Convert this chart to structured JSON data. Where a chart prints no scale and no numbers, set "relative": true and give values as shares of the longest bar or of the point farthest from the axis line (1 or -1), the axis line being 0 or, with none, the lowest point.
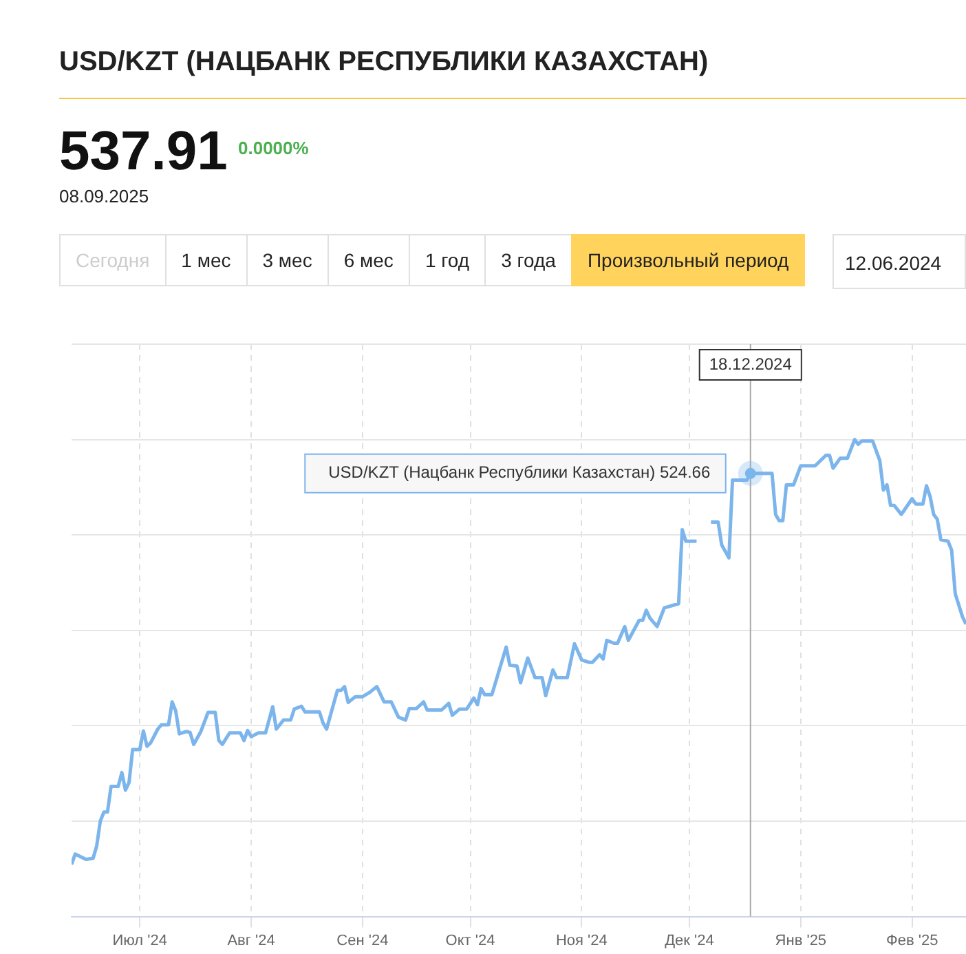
{
  "chart_data": {
    "type": "line",
    "title": "USD/KZT (НАЦБАНК РЕСПУБЛИКИ КАЗАХСТАН)",
    "relative": true,
    "grid": true,
    "legend": false,
    "marker": "none",
    "line_style": "solid",
    "xlim": [
      "2024-06-12",
      "2025-02-16"
    ],
    "xticks": [
      {
        "value": "2024-07-01",
        "label": "Июл '24"
      },
      {
        "value": "2024-08-01",
        "label": "Авг '24"
      },
      {
        "value": "2024-09-01",
        "label": "Сен '24"
      },
      {
        "value": "2024-10-01",
        "label": "Окт '24"
      },
      {
        "value": "2024-11-01",
        "label": "Ноя '24"
      },
      {
        "value": "2024-12-01",
        "label": "Дек '24"
      },
      {
        "value": "2025-01-01",
        "label": "Янв '25"
      },
      {
        "value": "2025-02-01",
        "label": "Фев '25"
      }
    ],
    "x": [
      "2024-06-12",
      "2024-06-13",
      "2024-06-16",
      "2024-06-18",
      "2024-06-19",
      "2024-06-20",
      "2024-06-21",
      "2024-06-22",
      "2024-06-23",
      "2024-06-25",
      "2024-06-26",
      "2024-06-27",
      "2024-06-28",
      "2024-06-29",
      "2024-07-01",
      "2024-07-02",
      "2024-07-03",
      "2024-07-04",
      "2024-07-06",
      "2024-07-07",
      "2024-07-09",
      "2024-07-10",
      "2024-07-11",
      "2024-07-12",
      "2024-07-14",
      "2024-07-15",
      "2024-07-16",
      "2024-07-18",
      "2024-07-20",
      "2024-07-22",
      "2024-07-23",
      "2024-07-24",
      "2024-07-26",
      "2024-07-29",
      "2024-07-30",
      "2024-07-31",
      "2024-08-01",
      "2024-08-03",
      "2024-08-05",
      "2024-08-07",
      "2024-08-08",
      "2024-08-10",
      "2024-08-12",
      "2024-08-13",
      "2024-08-15",
      "2024-08-16",
      "2024-08-20",
      "2024-08-21",
      "2024-08-22",
      "2024-08-25",
      "2024-08-26",
      "2024-08-27",
      "2024-08-28",
      "2024-08-30",
      "2024-09-01",
      "2024-09-03",
      "2024-09-05",
      "2024-09-07",
      "2024-09-09",
      "2024-09-11",
      "2024-09-13",
      "2024-09-14",
      "2024-09-16",
      "2024-09-18",
      "2024-09-19",
      "2024-09-23",
      "2024-09-25",
      "2024-09-26",
      "2024-09-28",
      "2024-09-30",
      "2024-10-02",
      "2024-10-03",
      "2024-10-04",
      "2024-10-05",
      "2024-10-07",
      "2024-10-11",
      "2024-10-12",
      "2024-10-14",
      "2024-10-15",
      "2024-10-17",
      "2024-10-19",
      "2024-10-21",
      "2024-10-22",
      "2024-10-24",
      "2024-10-25",
      "2024-10-28",
      "2024-10-30",
      "2024-11-01",
      "2024-11-03",
      "2024-11-04",
      "2024-11-06",
      "2024-11-07",
      "2024-11-08",
      "2024-11-10",
      "2024-11-11",
      "2024-11-13",
      "2024-11-14",
      "2024-11-17",
      "2024-11-18",
      "2024-11-19",
      "2024-11-20",
      "2024-11-22",
      "2024-11-24",
      "2024-11-28",
      "2024-11-29",
      "2024-11-30",
      "2024-12-03",
      "2024-12-04",
      "2024-12-06",
      "2024-12-07",
      "2024-12-09",
      "2024-12-10",
      "2024-12-12",
      "2024-12-13",
      "2024-12-17",
      "2024-12-18",
      "2024-12-20",
      "2024-12-24",
      "2024-12-25",
      "2024-12-26",
      "2024-12-27",
      "2024-12-28",
      "2024-12-30",
      "2025-01-01",
      "2025-01-05",
      "2025-01-08",
      "2025-01-09",
      "2025-01-10",
      "2025-01-12",
      "2025-01-14",
      "2025-01-16",
      "2025-01-17",
      "2025-01-18",
      "2025-01-21",
      "2025-01-23",
      "2025-01-24",
      "2025-01-25",
      "2025-01-26",
      "2025-01-27",
      "2025-01-29",
      "2025-02-01",
      "2025-02-02",
      "2025-02-04",
      "2025-02-05",
      "2025-02-06",
      "2025-02-07",
      "2025-02-08",
      "2025-02-09",
      "2025-02-11",
      "2025-02-12",
      "2025-02-13",
      "2025-02-15",
      "2025-02-16"
    ],
    "series": [
      {
        "color": "#7cb5ec",
        "values": [
          0.109,
          0.131,
          0.12,
          0.122,
          0.148,
          0.2,
          0.219,
          0.219,
          0.273,
          0.273,
          0.302,
          0.265,
          0.281,
          0.35,
          0.35,
          0.389,
          0.357,
          0.364,
          0.393,
          0.402,
          0.402,
          0.45,
          0.431,
          0.383,
          0.388,
          0.386,
          0.361,
          0.388,
          0.428,
          0.428,
          0.369,
          0.361,
          0.385,
          0.385,
          0.369,
          0.39,
          0.377,
          0.385,
          0.385,
          0.44,
          0.393,
          0.412,
          0.412,
          0.435,
          0.441,
          0.429,
          0.429,
          0.406,
          0.393,
          0.474,
          0.474,
          0.482,
          0.449,
          0.461,
          0.461,
          0.47,
          0.482,
          0.45,
          0.45,
          0.418,
          0.412,
          0.436,
          0.436,
          0.45,
          0.433,
          0.433,
          0.447,
          0.422,
          0.435,
          0.435,
          0.458,
          0.444,
          0.478,
          0.465,
          0.465,
          0.565,
          0.527,
          0.525,
          0.49,
          0.542,
          0.501,
          0.501,
          0.463,
          0.517,
          0.501,
          0.501,
          0.572,
          0.538,
          0.533,
          0.533,
          0.549,
          0.54,
          0.579,
          0.573,
          0.573,
          0.608,
          0.579,
          0.621,
          0.621,
          0.642,
          0.626,
          0.608,
          0.647,
          0.656,
          0.811,
          0.787,
          0.787,
          null,
          null,
          0.827,
          0.827,
          0.779,
          0.752,
          0.915,
          0.915,
          0.929,
          0.929,
          0.929,
          0.843,
          0.83,
          0.83,
          0.905,
          0.905,
          0.945,
          0.945,
          0.967,
          0.967,
          0.94,
          0.961,
          0.961,
          1.0,
          0.99,
          0.997,
          0.997,
          0.956,
          0.894,
          0.905,
          0.862,
          0.862,
          0.843,
          0.876,
          0.865,
          0.865,
          0.903,
          0.881,
          0.843,
          0.833,
          0.79,
          0.787,
          0.768,
          0.677,
          0.629,
          0.613
        ]
      }
    ],
    "ref_lines": [
      {
        "axis": "x",
        "value": "2024-12-18",
        "label": "18.12.2024",
        "color": "#aaaaaa"
      }
    ],
    "annotations": [
      "537.91",
      "0.0000%",
      "08.09.2025",
      "Сегодня",
      "1 мес",
      "3 мес",
      "6 мес",
      "1 год",
      "3 года",
      "Произвольный период",
      "12.06.2024",
      {
        "text": "USD/KZT (Нацбанк Республики Казахстан) 524.66",
        "x": "2024-12-18",
        "y": 0.929
      }
    ]
  }
}
